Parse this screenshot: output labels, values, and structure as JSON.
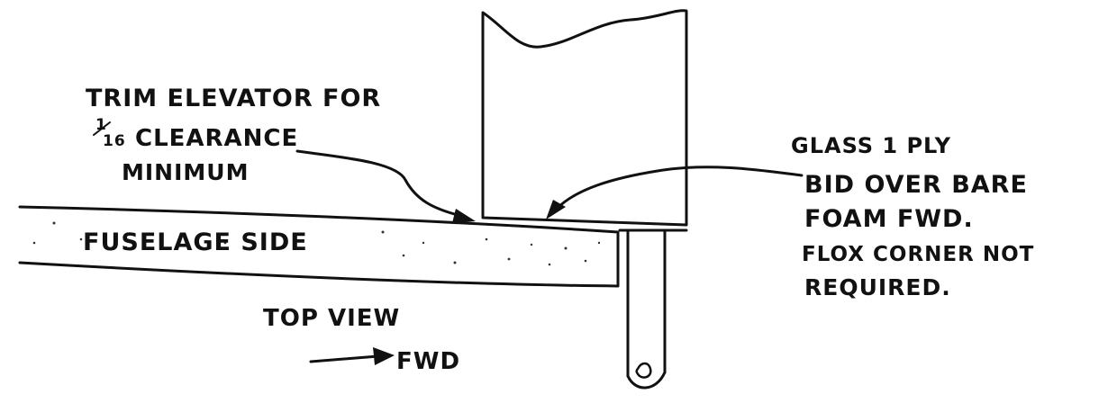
{
  "labels": {
    "trim_line1": "TRIM ELEVATOR FOR",
    "trim_frac_num": "1",
    "trim_frac_den": "16",
    "trim_line2_rest": "CLEARANCE",
    "trim_line3": "MINIMUM",
    "glass_line1": "GLASS 1 PLY",
    "glass_line2": "BID OVER BARE",
    "glass_line3": "FOAM FWD.",
    "glass_line4": "FLOX CORNER NOT",
    "glass_line5": "REQUIRED.",
    "fuselage": "FUSELAGE SIDE",
    "top_view": "TOP VIEW",
    "fwd": "FWD"
  },
  "colors": {
    "ink": "#111111",
    "paper": "#ffffff"
  }
}
